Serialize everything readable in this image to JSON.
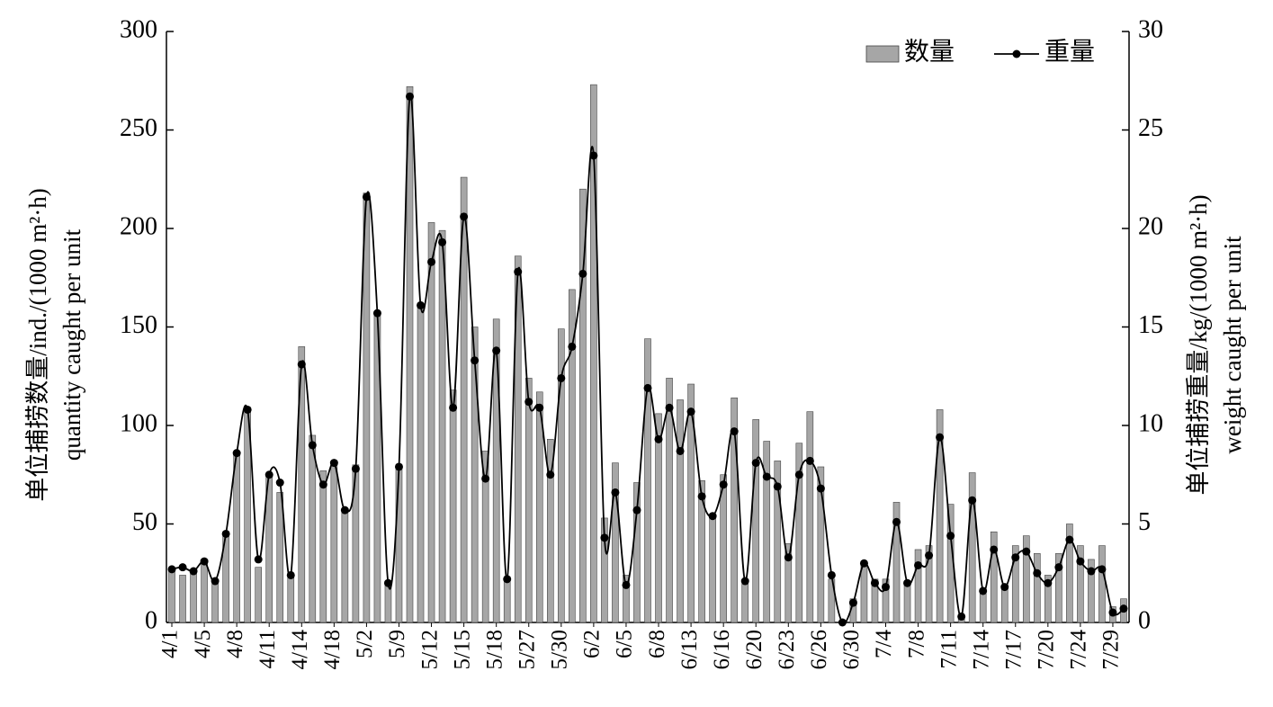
{
  "chart_data": {
    "type": "bar",
    "categories": [
      "4/1",
      null,
      null,
      "4/5",
      null,
      null,
      "4/8",
      null,
      null,
      "4/11",
      null,
      null,
      "4/14",
      null,
      null,
      "4/18",
      null,
      null,
      "5/2",
      null,
      null,
      "5/9",
      null,
      null,
      "5/12",
      null,
      null,
      "5/15",
      null,
      null,
      "5/18",
      null,
      null,
      "5/27",
      null,
      null,
      "5/30",
      null,
      null,
      "6/2",
      null,
      null,
      "6/5",
      null,
      null,
      "6/8",
      null,
      null,
      "6/13",
      null,
      null,
      "6/16",
      null,
      null,
      "6/20",
      null,
      null,
      "6/23",
      null,
      null,
      "6/26",
      null,
      null,
      "6/30",
      null,
      null,
      "7/4",
      null,
      null,
      "7/8",
      null,
      null,
      "7/11",
      null,
      null,
      "7/14",
      null,
      null,
      "7/17",
      null,
      null,
      "7/20",
      null,
      null,
      "7/24",
      null,
      null,
      "7/29",
      null
    ],
    "series": [
      {
        "name": "数量",
        "color": "#a6a6a6",
        "values": [
          27,
          24,
          25,
          30,
          21,
          46,
          86,
          108,
          28,
          75,
          66,
          24,
          140,
          95,
          77,
          82,
          57,
          80,
          218,
          158,
          21,
          80,
          272,
          160,
          203,
          199,
          118,
          226,
          150,
          87,
          154,
          22,
          186,
          124,
          117,
          93,
          149,
          169,
          220,
          273,
          53,
          81,
          24,
          71,
          144,
          106,
          124,
          113,
          121,
          72,
          54,
          75,
          114,
          21,
          103,
          92,
          82,
          40,
          91,
          107,
          79,
          22,
          1,
          12,
          29,
          22,
          22,
          61,
          21,
          37,
          39,
          108,
          60,
          3,
          76,
          17,
          46,
          18,
          39,
          44,
          35,
          24,
          35,
          50,
          39,
          32,
          39,
          8,
          12
        ]
      },
      {
        "name": "重量",
        "color": "#000000",
        "axis": "y2",
        "type": "line",
        "values": [
          2.7,
          2.8,
          2.6,
          3.1,
          2.1,
          4.5,
          8.6,
          10.8,
          3.2,
          7.5,
          7.1,
          2.4,
          13.1,
          9.0,
          7.0,
          8.1,
          5.7,
          7.8,
          21.6,
          15.7,
          2.0,
          7.9,
          26.7,
          16.1,
          18.3,
          19.3,
          10.9,
          20.6,
          13.3,
          7.3,
          13.8,
          2.2,
          17.8,
          11.2,
          10.9,
          7.5,
          12.4,
          14.0,
          17.7,
          23.7,
          4.3,
          6.6,
          1.9,
          5.7,
          11.9,
          9.3,
          10.9,
          8.7,
          10.7,
          6.4,
          5.4,
          7.0,
          9.7,
          2.1,
          8.1,
          7.4,
          6.9,
          3.3,
          7.5,
          8.2,
          6.8,
          2.4,
          0.0,
          1.0,
          3.0,
          2.0,
          1.8,
          5.1,
          2.0,
          2.9,
          3.4,
          9.4,
          4.4,
          0.3,
          6.2,
          1.6,
          3.7,
          1.8,
          3.3,
          3.6,
          2.5,
          2.0,
          2.8,
          4.2,
          3.1,
          2.6,
          2.7,
          0.5,
          0.7
        ]
      }
    ],
    "ylabel": [
      "单位捕捞数量/ind./(1000 m²·h)",
      "quantity caught per unit"
    ],
    "y2label": [
      "单位捕捞重量/kg/(1000 m²·h)",
      "weight caught per unit"
    ],
    "ylim": [
      0,
      300
    ],
    "yticks": [
      0,
      50,
      100,
      150,
      200,
      250,
      300
    ],
    "y2lim": [
      0,
      30
    ],
    "y2ticks": [
      0,
      5,
      10,
      15,
      20,
      25,
      30
    ],
    "grid": false,
    "legend": "top-right"
  }
}
